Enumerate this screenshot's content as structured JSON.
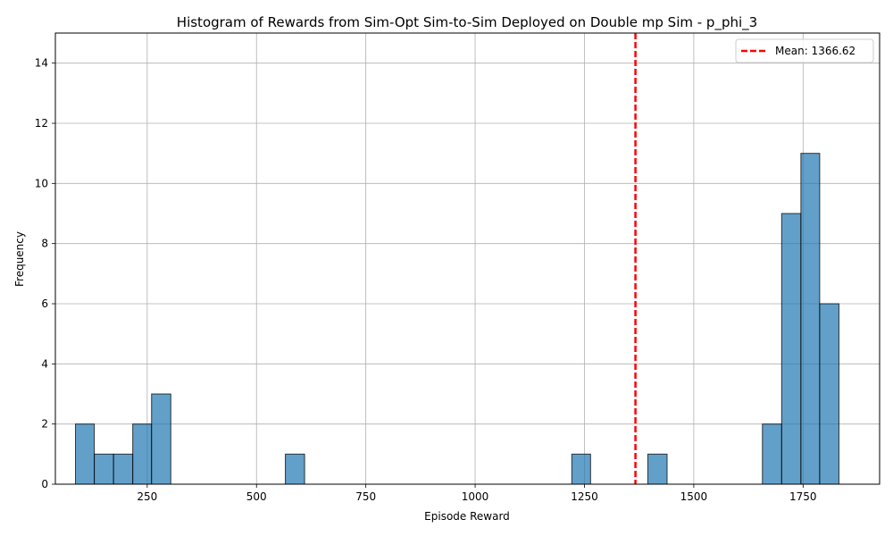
{
  "chart_data": {
    "type": "bar",
    "title": "Histogram of Rewards from Sim-Opt Sim-to-Sim Deployed on Double mp Sim - p_phi_3",
    "xlabel": "Episode Reward",
    "ylabel": "Frequency",
    "xlim": [
      40,
      1925
    ],
    "ylim": [
      0,
      15
    ],
    "xticks": [
      250,
      500,
      750,
      1000,
      1250,
      1500,
      1750
    ],
    "yticks": [
      0,
      2,
      4,
      6,
      8,
      10,
      12,
      14
    ],
    "grid": true,
    "bar_color": "#1f77b4",
    "bins": [
      {
        "x0": 86,
        "x1": 129,
        "count": 2
      },
      {
        "x0": 129,
        "x1": 173,
        "count": 1
      },
      {
        "x0": 173,
        "x1": 217,
        "count": 1
      },
      {
        "x0": 217,
        "x1": 260,
        "count": 2
      },
      {
        "x0": 260,
        "x1": 304,
        "count": 3
      },
      {
        "x0": 566,
        "x1": 610,
        "count": 1
      },
      {
        "x0": 1221,
        "x1": 1264,
        "count": 1
      },
      {
        "x0": 1395,
        "x1": 1439,
        "count": 1
      },
      {
        "x0": 1657,
        "x1": 1701,
        "count": 2
      },
      {
        "x0": 1701,
        "x1": 1745,
        "count": 9
      },
      {
        "x0": 1745,
        "x1": 1788,
        "count": 11
      },
      {
        "x0": 1788,
        "x1": 1832,
        "count": 6
      }
    ],
    "mean": {
      "value": 1366.62,
      "label": "Mean: 1366.62",
      "color": "#ff0000"
    },
    "legend": {
      "position": "top-right",
      "entries": [
        "Mean: 1366.62"
      ]
    }
  }
}
